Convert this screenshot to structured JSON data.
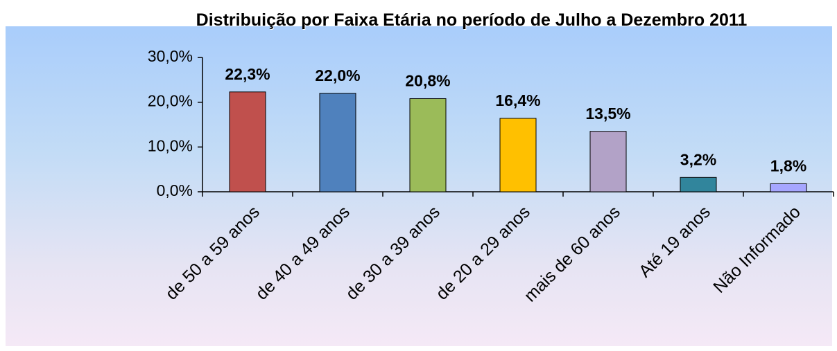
{
  "chart_data": {
    "type": "bar",
    "title": "Distribuição por  Faixa Etária no período de Julho a Dezembro 2011",
    "categories": [
      "de 50 a 59 anos",
      "de 40 a 49 anos",
      "de 30 a 39 anos",
      "de 20 a 29 anos",
      "mais de 60 anos",
      "Até 19 anos",
      "Não Informado"
    ],
    "values": [
      22.3,
      22.0,
      20.8,
      16.4,
      13.5,
      3.2,
      1.8
    ],
    "value_labels": [
      "22,3%",
      "22,0%",
      "20,8%",
      "16,4%",
      "13,5%",
      "3,2%",
      "1,8%"
    ],
    "colors": [
      "#c0504d",
      "#4f81bd",
      "#9bbb59",
      "#ffc000",
      "#b2a2c7",
      "#31859c",
      "#a6a6ff"
    ],
    "ylim": [
      0,
      30
    ],
    "yticks": [
      {
        "value": 0,
        "label": "0,0%"
      },
      {
        "value": 10,
        "label": "10,0%"
      },
      {
        "value": 20,
        "label": "20,0%"
      },
      {
        "value": 30,
        "label": "30,0%"
      }
    ],
    "grid": false
  }
}
